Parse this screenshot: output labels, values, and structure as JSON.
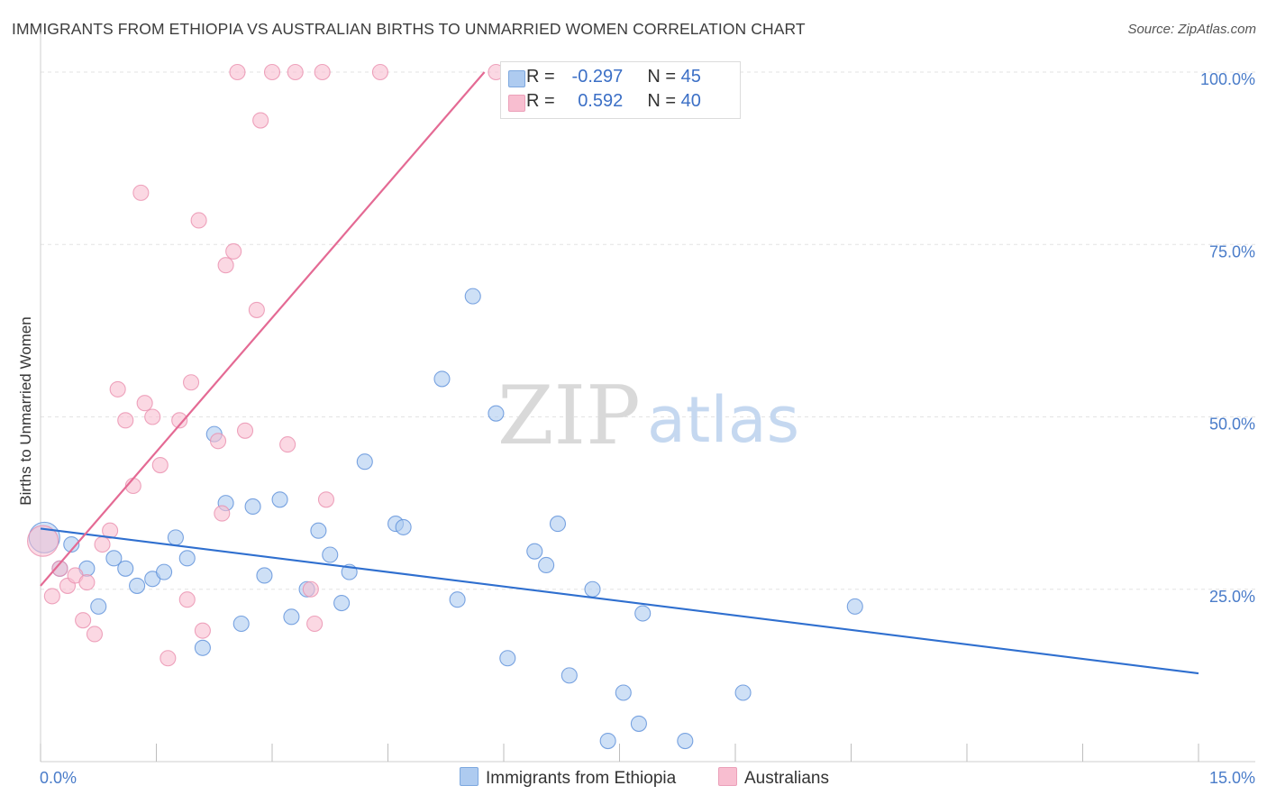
{
  "title": "IMMIGRANTS FROM ETHIOPIA VS AUSTRALIAN BIRTHS TO UNMARRIED WOMEN CORRELATION CHART",
  "source": "Source: ZipAtlas.com",
  "watermark": {
    "zip": "ZIP",
    "atlas": "atlas"
  },
  "legend": {
    "rows": [
      {
        "r_label": "R =",
        "r_value": "-0.297",
        "n_label": "N =",
        "n_value": "45",
        "color": "#aecbf0"
      },
      {
        "r_label": "R =",
        "r_value": "0.592",
        "n_label": "N =",
        "n_value": "40",
        "color": "#f8bed0"
      }
    ]
  },
  "bottom_legend": [
    {
      "label": "Immigrants from Ethiopia",
      "color": "#aecbf0"
    },
    {
      "label": "Australians",
      "color": "#f8bed0"
    }
  ],
  "chart_data": {
    "type": "scatter",
    "title": "IMMIGRANTS FROM ETHIOPIA VS AUSTRALIAN BIRTHS TO UNMARRIED WOMEN CORRELATION CHART",
    "xlabel": "",
    "ylabel": "Births to Unmarried Women",
    "xlim": [
      0,
      15
    ],
    "ylim": [
      0,
      105
    ],
    "x_tick_labels": [
      "0.0%",
      "15.0%"
    ],
    "y_ticks": [
      25,
      50,
      75,
      100
    ],
    "y_tick_labels": [
      "25.0%",
      "50.0%",
      "75.0%",
      "100.0%"
    ],
    "grid": true,
    "legend_position": "top-center",
    "series": [
      {
        "name": "Immigrants from Ethiopia",
        "color": "#5b8fd9",
        "fill": "#aecbf0",
        "trend": {
          "x": [
            0,
            15
          ],
          "y": [
            33.8,
            12.8
          ],
          "color": "#2f6fcf"
        },
        "points": [
          {
            "x": 0.05,
            "y": 32.5,
            "big": true
          },
          {
            "x": 0.25,
            "y": 28.0
          },
          {
            "x": 0.4,
            "y": 31.5
          },
          {
            "x": 0.6,
            "y": 28.0
          },
          {
            "x": 0.75,
            "y": 22.5
          },
          {
            "x": 0.95,
            "y": 29.5
          },
          {
            "x": 1.1,
            "y": 28.0
          },
          {
            "x": 1.25,
            "y": 25.5
          },
          {
            "x": 1.45,
            "y": 26.5
          },
          {
            "x": 1.6,
            "y": 27.5
          },
          {
            "x": 1.75,
            "y": 32.5
          },
          {
            "x": 1.9,
            "y": 29.5
          },
          {
            "x": 2.1,
            "y": 16.5
          },
          {
            "x": 2.25,
            "y": 47.5
          },
          {
            "x": 2.4,
            "y": 37.5
          },
          {
            "x": 2.6,
            "y": 20.0
          },
          {
            "x": 2.75,
            "y": 37.0
          },
          {
            "x": 2.9,
            "y": 27.0
          },
          {
            "x": 3.1,
            "y": 38.0
          },
          {
            "x": 3.25,
            "y": 21.0
          },
          {
            "x": 3.45,
            "y": 25.0
          },
          {
            "x": 3.6,
            "y": 33.5
          },
          {
            "x": 3.75,
            "y": 30.0
          },
          {
            "x": 3.9,
            "y": 23.0
          },
          {
            "x": 4.0,
            "y": 27.5
          },
          {
            "x": 4.2,
            "y": 43.5
          },
          {
            "x": 4.6,
            "y": 34.5
          },
          {
            "x": 4.7,
            "y": 34.0
          },
          {
            "x": 5.2,
            "y": 55.5
          },
          {
            "x": 5.4,
            "y": 23.5
          },
          {
            "x": 5.6,
            "y": 67.5
          },
          {
            "x": 5.9,
            "y": 50.5
          },
          {
            "x": 6.05,
            "y": 15.0
          },
          {
            "x": 6.4,
            "y": 30.5
          },
          {
            "x": 6.55,
            "y": 28.5
          },
          {
            "x": 6.7,
            "y": 34.5
          },
          {
            "x": 6.85,
            "y": 12.5
          },
          {
            "x": 7.15,
            "y": 25.0
          },
          {
            "x": 7.35,
            "y": 3.0
          },
          {
            "x": 7.55,
            "y": 10.0
          },
          {
            "x": 7.75,
            "y": 5.5
          },
          {
            "x": 7.8,
            "y": 21.5
          },
          {
            "x": 8.35,
            "y": 3.0
          },
          {
            "x": 9.1,
            "y": 10.0
          },
          {
            "x": 10.55,
            "y": 22.5
          }
        ]
      },
      {
        "name": "Australians",
        "color": "#ea8fae",
        "fill": "#f8bed0",
        "trend": {
          "x": [
            0,
            5.75
          ],
          "y": [
            25.5,
            100
          ],
          "color": "#e46a94"
        },
        "points": [
          {
            "x": 0.03,
            "y": 32.0,
            "big": true
          },
          {
            "x": 0.15,
            "y": 24.0
          },
          {
            "x": 0.25,
            "y": 28.0
          },
          {
            "x": 0.35,
            "y": 25.5
          },
          {
            "x": 0.45,
            "y": 27.0
          },
          {
            "x": 0.55,
            "y": 20.5
          },
          {
            "x": 0.6,
            "y": 26.0
          },
          {
            "x": 0.7,
            "y": 18.5
          },
          {
            "x": 0.8,
            "y": 31.5
          },
          {
            "x": 0.9,
            "y": 33.5
          },
          {
            "x": 1.0,
            "y": 54.0
          },
          {
            "x": 1.1,
            "y": 49.5
          },
          {
            "x": 1.2,
            "y": 40.0
          },
          {
            "x": 1.3,
            "y": 82.5
          },
          {
            "x": 1.35,
            "y": 52.0
          },
          {
            "x": 1.45,
            "y": 50.0
          },
          {
            "x": 1.55,
            "y": 43.0
          },
          {
            "x": 1.65,
            "y": 15.0
          },
          {
            "x": 1.8,
            "y": 49.5
          },
          {
            "x": 1.9,
            "y": 23.5
          },
          {
            "x": 1.95,
            "y": 55.0
          },
          {
            "x": 2.05,
            "y": 78.5
          },
          {
            "x": 2.1,
            "y": 19.0
          },
          {
            "x": 2.3,
            "y": 46.5
          },
          {
            "x": 2.35,
            "y": 36.0
          },
          {
            "x": 2.4,
            "y": 72.0
          },
          {
            "x": 2.5,
            "y": 74.0
          },
          {
            "x": 2.55,
            "y": 100.0
          },
          {
            "x": 2.65,
            "y": 48.0
          },
          {
            "x": 2.8,
            "y": 65.5
          },
          {
            "x": 2.85,
            "y": 93.0
          },
          {
            "x": 3.0,
            "y": 100.0
          },
          {
            "x": 3.2,
            "y": 46.0
          },
          {
            "x": 3.3,
            "y": 100.0
          },
          {
            "x": 3.5,
            "y": 25.0
          },
          {
            "x": 3.55,
            "y": 20.0
          },
          {
            "x": 3.65,
            "y": 100.0
          },
          {
            "x": 3.7,
            "y": 38.0
          },
          {
            "x": 4.4,
            "y": 100.0
          },
          {
            "x": 5.9,
            "y": 100.0
          }
        ]
      }
    ]
  }
}
